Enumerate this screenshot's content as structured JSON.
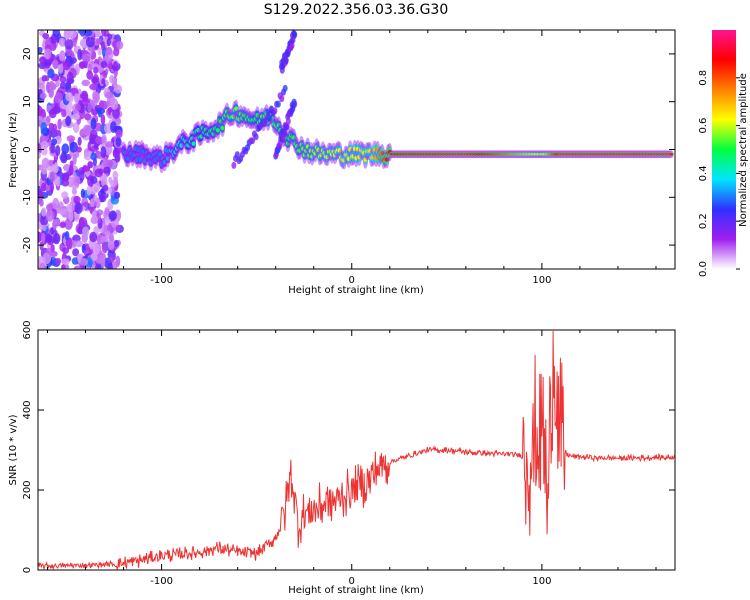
{
  "title": "S129.2022.356.03.36.G30",
  "chart_data": [
    {
      "type": "heatmap",
      "xlabel": "Height of straight line (km)",
      "ylabel": "Frequency (Hz)",
      "xlim": [
        -165,
        170
      ],
      "ylim": [
        -25,
        25
      ],
      "xticks": [
        -100,
        0,
        100
      ],
      "yticks": [
        -20,
        -10,
        0,
        10,
        20
      ],
      "grid": false,
      "colorbar": {
        "label": "Normalized spectral amplitude",
        "range": [
          0.0,
          1.0
        ],
        "ticks": [
          "0.0",
          "0.2",
          "0.4",
          "0.6",
          "0.8"
        ],
        "colors": [
          "#ffffff",
          "#a020f0",
          "#3030ff",
          "#00e5ff",
          "#00ff40",
          "#ffff00",
          "#ff8000",
          "#ff0000",
          "#ff1493"
        ]
      },
      "ridge": [
        {
          "x": -120,
          "y": -1,
          "amp": 0.3
        },
        {
          "x": -110,
          "y": -1,
          "amp": 0.3
        },
        {
          "x": -100,
          "y": -2,
          "amp": 0.3
        },
        {
          "x": -90,
          "y": 1,
          "amp": 0.4
        },
        {
          "x": -80,
          "y": 3,
          "amp": 0.45
        },
        {
          "x": -70,
          "y": 5,
          "amp": 0.5
        },
        {
          "x": -62,
          "y": 8,
          "amp": 0.55
        },
        {
          "x": -50,
          "y": 6,
          "amp": 0.5
        },
        {
          "x": -42,
          "y": 7,
          "amp": 0.55
        },
        {
          "x": -35,
          "y": 3,
          "amp": 0.5
        },
        {
          "x": -25,
          "y": 0,
          "amp": 0.55
        },
        {
          "x": -15,
          "y": -1,
          "amp": 0.6
        },
        {
          "x": 0,
          "y": -1,
          "amp": 0.65
        },
        {
          "x": 10,
          "y": -1,
          "amp": 0.65
        },
        {
          "x": 20,
          "y": -1,
          "amp": 0.9
        },
        {
          "x": 60,
          "y": -1,
          "amp": 0.95
        },
        {
          "x": 90,
          "y": -1,
          "amp": 0.7
        },
        {
          "x": 100,
          "y": -1,
          "amp": 0.6
        },
        {
          "x": 110,
          "y": -1,
          "amp": 0.95
        },
        {
          "x": 168,
          "y": -1,
          "amp": 0.95
        }
      ]
    },
    {
      "type": "line",
      "xlabel": "Height of straight line (km)",
      "ylabel": "SNR (10 * v/v)",
      "xlim": [
        -165,
        170
      ],
      "ylim": [
        0,
        600
      ],
      "xticks": [
        -100,
        0,
        100
      ],
      "yticks": [
        0,
        200,
        400,
        600
      ],
      "grid": false,
      "series": [
        {
          "color": "#ee3333",
          "x": [
            -165,
            -140,
            -125,
            -115,
            -100,
            -90,
            -80,
            -70,
            -60,
            -50,
            -45,
            -40,
            -35,
            -32,
            -28,
            -25,
            -20,
            -15,
            -10,
            -5,
            0,
            5,
            10,
            15,
            20,
            30,
            40,
            50,
            60,
            70,
            80,
            85,
            90,
            95,
            100,
            103,
            106,
            110,
            115,
            130,
            150,
            170
          ],
          "y": [
            10,
            12,
            15,
            20,
            35,
            40,
            45,
            55,
            45,
            40,
            60,
            80,
            150,
            250,
            110,
            140,
            150,
            165,
            170,
            185,
            200,
            210,
            230,
            260,
            270,
            285,
            300,
            300,
            295,
            292,
            290,
            288,
            285,
            300,
            380,
            150,
            580,
            300,
            285,
            280,
            280,
            282
          ]
        }
      ]
    }
  ]
}
